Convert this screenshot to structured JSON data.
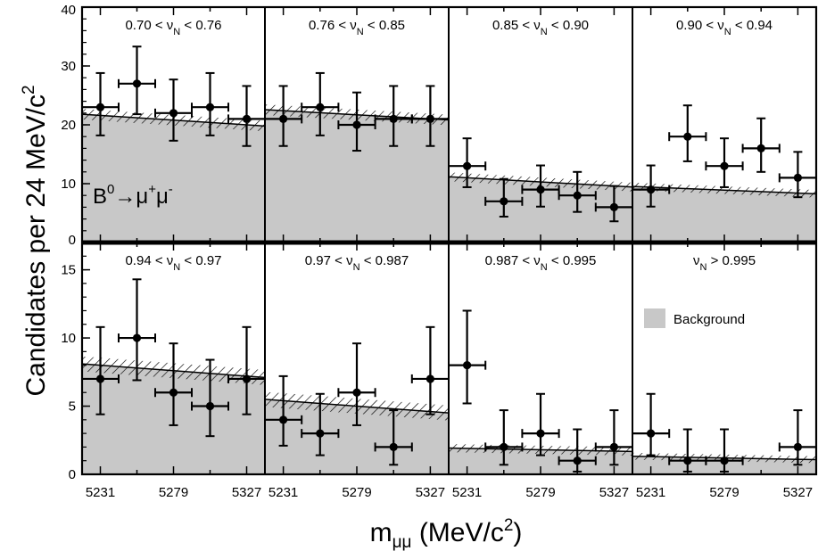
{
  "figure": {
    "ylabel_main": "Candidates per 24 MeV/c",
    "ylabel_sup": "2",
    "xlabel_main": "m",
    "xlabel_sub": "μμ",
    "xlabel_unit": " (MeV/c",
    "xlabel_unit_sup": "2",
    "xlabel_close": ")",
    "process_label": {
      "base": "B",
      "sup0": "0",
      "arrow": "→μ",
      "sup1": "+",
      "mid": "μ",
      "sup2": "-"
    },
    "legend": {
      "label": "Background",
      "color": "#c8c8c8"
    }
  },
  "chart_data": {
    "type": "scatter",
    "x_bins": [
      5231,
      5255,
      5279,
      5303,
      5327
    ],
    "x_ticks": [
      5231,
      5279,
      5327
    ],
    "xlim": [
      5219,
      5339
    ],
    "rows": [
      {
        "ylim": [
          0,
          40
        ],
        "yticks": [
          0,
          10,
          20,
          30,
          40
        ]
      },
      {
        "ylim": [
          0,
          17
        ],
        "yticks": [
          0,
          5,
          10,
          15
        ]
      }
    ],
    "panels": [
      {
        "label": {
          "pre": "0.70 < ν",
          "sub": "N",
          "post": " < 0.76"
        },
        "row": 0,
        "col": 0,
        "values": [
          23,
          27,
          22,
          23,
          21
        ],
        "err_up": [
          5.8,
          6.3,
          5.7,
          5.8,
          5.6
        ],
        "err_down": [
          4.8,
          5.2,
          4.7,
          4.8,
          4.6
        ],
        "background": [
          21.6,
          21.2,
          20.8,
          20.4,
          20.0
        ],
        "bg_band": 1.8
      },
      {
        "label": {
          "pre": "0.76 < ν",
          "sub": "N",
          "post": " < 0.85"
        },
        "row": 0,
        "col": 1,
        "values": [
          21,
          23,
          20,
          21,
          21
        ],
        "err_up": [
          5.6,
          5.8,
          5.5,
          5.6,
          5.6
        ],
        "err_down": [
          4.6,
          4.8,
          4.4,
          4.6,
          4.6
        ],
        "background": [
          22.4,
          22.0,
          21.6,
          21.3,
          21.0
        ],
        "bg_band": 1.8
      },
      {
        "label": {
          "pre": "0.85 < ν",
          "sub": "N",
          "post": " < 0.90"
        },
        "row": 0,
        "col": 2,
        "values": [
          13,
          7,
          9,
          8,
          6
        ],
        "err_up": [
          4.7,
          3.8,
          4.1,
          4.0,
          3.6
        ],
        "err_down": [
          3.6,
          2.6,
          2.9,
          2.8,
          2.4
        ],
        "background": [
          11.0,
          10.6,
          10.2,
          9.9,
          9.6
        ],
        "bg_band": 1.5
      },
      {
        "label": {
          "pre": "0.90 < ν",
          "sub": "N",
          "post": " < 0.94"
        },
        "row": 0,
        "col": 3,
        "values": [
          9,
          18,
          13,
          16,
          11
        ],
        "err_up": [
          4.1,
          5.3,
          4.7,
          5.1,
          4.4
        ],
        "err_down": [
          2.9,
          4.2,
          3.6,
          4.0,
          3.3
        ],
        "background": [
          9.4,
          9.1,
          8.8,
          8.6,
          8.4
        ],
        "bg_band": 1.3
      },
      {
        "label": {
          "pre": "0.94 < ν",
          "sub": "N",
          "post": " < 0.97"
        },
        "row": 1,
        "col": 0,
        "values": [
          7,
          10,
          6,
          5,
          7
        ],
        "err_up": [
          3.8,
          4.3,
          3.6,
          3.4,
          3.8
        ],
        "err_down": [
          2.6,
          3.1,
          2.4,
          2.2,
          2.6
        ],
        "background": [
          8.0,
          7.8,
          7.6,
          7.4,
          7.2
        ],
        "bg_band": 1.1
      },
      {
        "label": {
          "pre": "0.97 < ν",
          "sub": "N",
          "post": " < 0.987"
        },
        "row": 1,
        "col": 1,
        "values": [
          4,
          3,
          6,
          2,
          7
        ],
        "err_up": [
          3.2,
          2.9,
          3.6,
          2.7,
          3.8
        ],
        "err_down": [
          1.9,
          1.6,
          2.4,
          1.3,
          2.6
        ],
        "background": [
          5.4,
          5.2,
          5.0,
          4.8,
          4.6
        ],
        "bg_band": 1.1
      },
      {
        "label": {
          "pre": "0.987 < ν",
          "sub": "N",
          "post": " < 0.995"
        },
        "row": 1,
        "col": 2,
        "values": [
          8,
          2,
          3,
          1,
          2
        ],
        "err_up": [
          4.0,
          2.7,
          2.9,
          2.3,
          2.7
        ],
        "err_down": [
          2.8,
          1.3,
          1.6,
          0.8,
          1.3
        ],
        "background": [
          1.9,
          1.85,
          1.8,
          1.75,
          1.7
        ],
        "bg_band": 0.6
      },
      {
        "label": {
          "pre": "ν",
          "sub": "N",
          "post": " > 0.995"
        },
        "row": 1,
        "col": 3,
        "values": [
          3,
          1,
          1,
          null,
          2
        ],
        "err_up": [
          2.9,
          2.3,
          2.3,
          null,
          2.7
        ],
        "err_down": [
          1.6,
          0.8,
          0.8,
          null,
          1.3
        ],
        "background": [
          1.3,
          1.25,
          1.2,
          1.15,
          1.1
        ],
        "bg_band": 0.5
      }
    ]
  }
}
